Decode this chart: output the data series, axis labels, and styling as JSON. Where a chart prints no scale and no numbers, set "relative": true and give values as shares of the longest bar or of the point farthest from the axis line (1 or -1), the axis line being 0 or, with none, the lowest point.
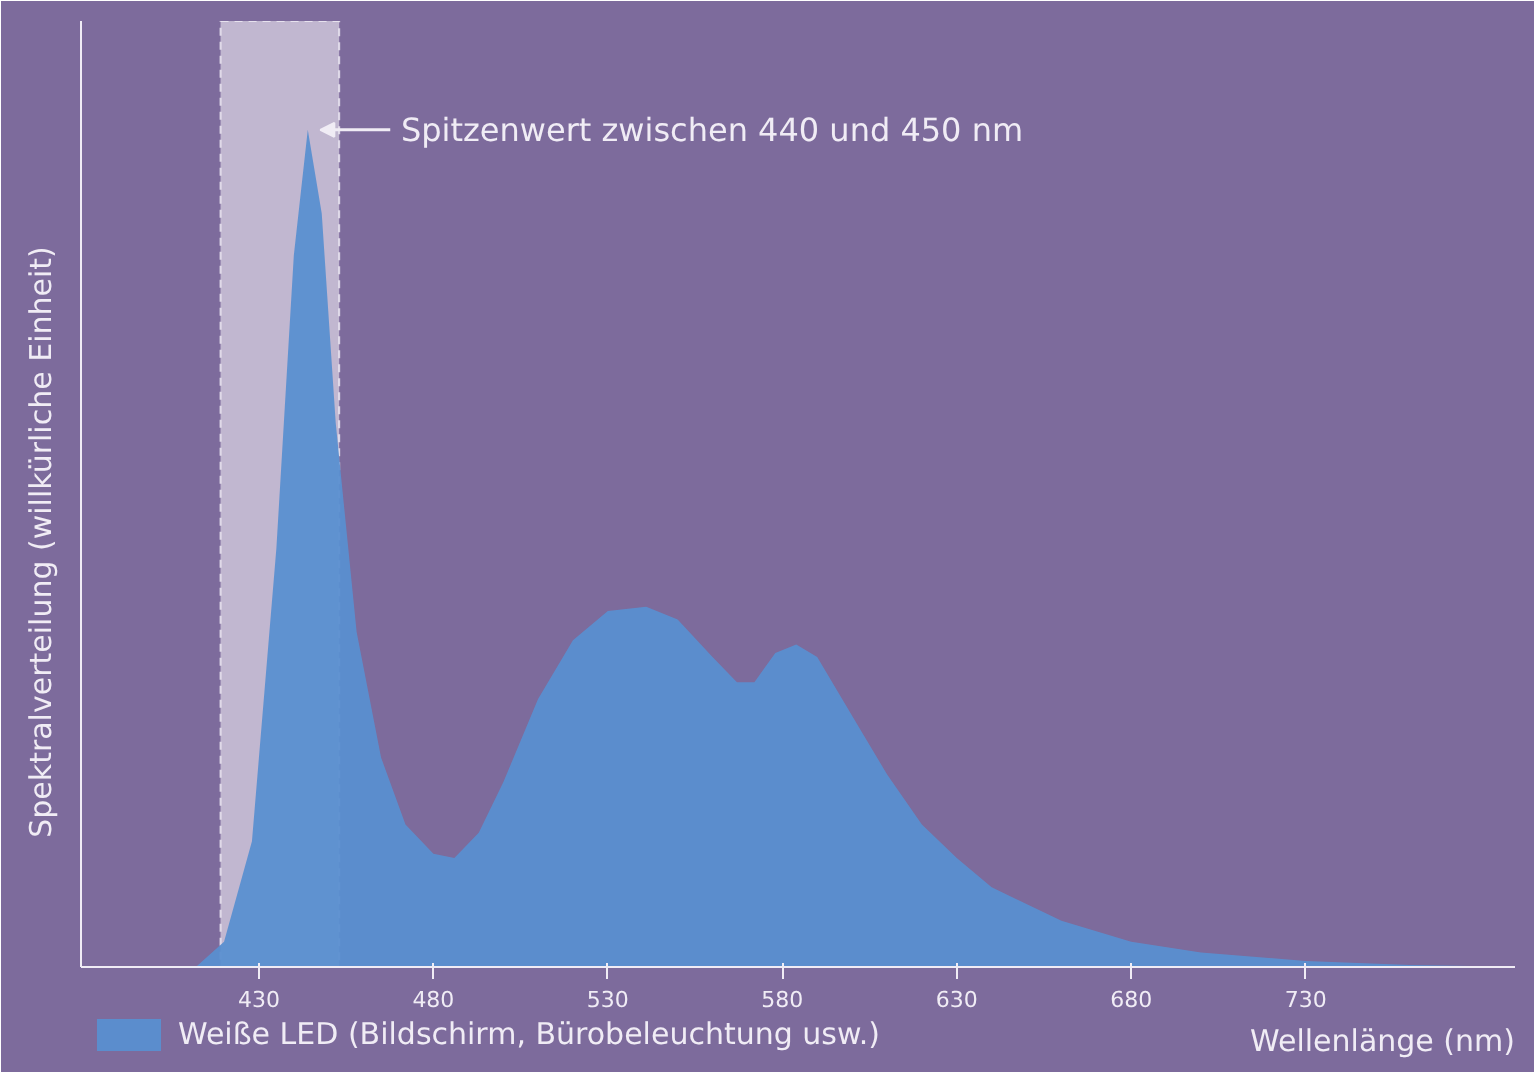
{
  "chart_data": {
    "type": "area",
    "relative": true,
    "xlabel": "Wellenlänge (nm)",
    "ylabel": "Spektralverteilung (willkürliche Einheit)",
    "xlim": [
      379,
      790
    ],
    "xticks": [
      430,
      480,
      530,
      580,
      630,
      680,
      730
    ],
    "grid": false,
    "legend": "bottom left",
    "series": [
      {
        "name": "Weiße LED (Bildschirm, Bürobeleuchtung usw.)",
        "color": "#5a8fd0",
        "x": [
          412,
          420,
          428,
          435,
          440,
          444,
          448,
          452,
          458,
          465,
          472,
          480,
          486,
          493,
          500,
          510,
          520,
          530,
          541,
          550,
          560,
          567,
          572,
          578,
          584,
          590,
          600,
          610,
          620,
          630,
          640,
          660,
          680,
          700,
          730,
          760,
          790
        ],
        "values": [
          0,
          0.03,
          0.15,
          0.5,
          0.85,
          1.0,
          0.9,
          0.65,
          0.4,
          0.25,
          0.17,
          0.135,
          0.13,
          0.16,
          0.22,
          0.32,
          0.39,
          0.425,
          0.43,
          0.415,
          0.37,
          0.34,
          0.34,
          0.375,
          0.385,
          0.37,
          0.3,
          0.23,
          0.17,
          0.13,
          0.095,
          0.055,
          0.03,
          0.017,
          0.007,
          0.002,
          0
        ]
      }
    ],
    "bands": [
      {
        "axis": "x",
        "from": 419,
        "to": 453,
        "color": "#d8d0e2"
      }
    ],
    "annotations": [
      {
        "text": "Spitzenwert zwischen 440 und 450 nm",
        "x": 444,
        "y": 1.0
      }
    ]
  }
}
